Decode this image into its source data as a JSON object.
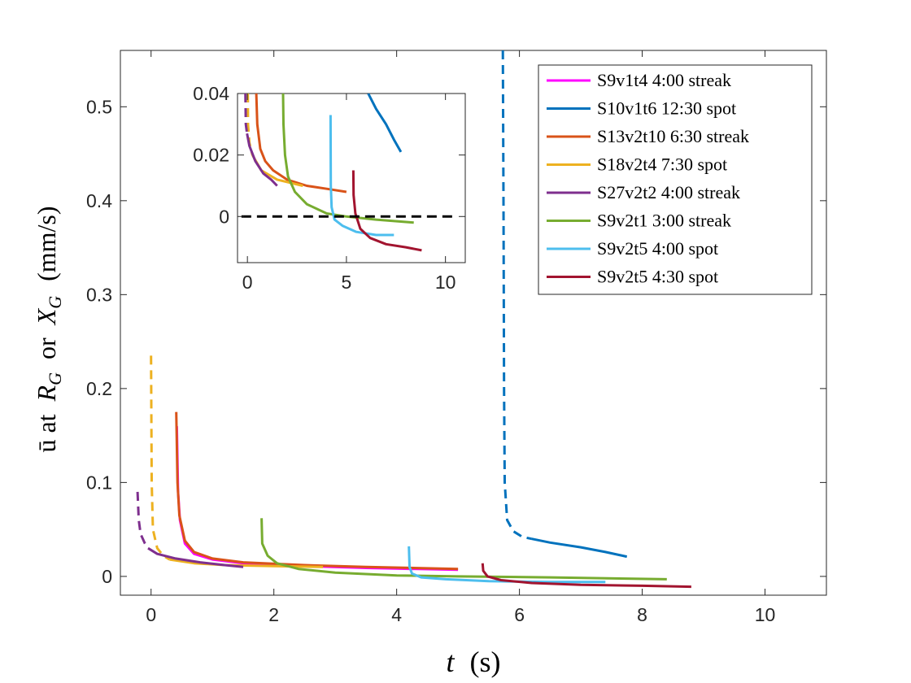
{
  "chart_data": {
    "type": "line",
    "xlabel": {
      "symbol": "t",
      "unit": "(s)"
    },
    "ylabel": {
      "prefix": "ū at",
      "r": "R",
      "r_sub": "G",
      "or": "or",
      "x": "X",
      "x_sub": "G",
      "unit": "(mm/s)"
    },
    "xlim": [
      -0.5,
      11
    ],
    "ylim": [
      -0.02,
      0.56
    ],
    "xticks": [
      "0",
      "2",
      "4",
      "6",
      "8",
      "10"
    ],
    "xtick_values": [
      0,
      2,
      4,
      6,
      8,
      10
    ],
    "yticks": [
      "0",
      "0.1",
      "0.2",
      "0.3",
      "0.4",
      "0.5"
    ],
    "ytick_values": [
      0,
      0.1,
      0.2,
      0.3,
      0.4,
      0.5
    ],
    "legend_position": "top-right",
    "series": [
      {
        "name": "S9v1t4 4:00 streak",
        "color": "#ff00ff",
        "dashed": [],
        "solid": [
          [
            0.42,
            0.16
          ],
          [
            0.44,
            0.09
          ],
          [
            0.47,
            0.06
          ],
          [
            0.55,
            0.035
          ],
          [
            0.7,
            0.024
          ],
          [
            1.0,
            0.018
          ],
          [
            1.5,
            0.014
          ],
          [
            2.5,
            0.011
          ],
          [
            3.5,
            0.009
          ],
          [
            5.0,
            0.007
          ]
        ]
      },
      {
        "name": "S10v1t6 12:30 spot",
        "color": "#0072bd",
        "dashed": [
          [
            5.73,
            0.56
          ],
          [
            5.74,
            0.4
          ],
          [
            5.75,
            0.2
          ],
          [
            5.76,
            0.1
          ],
          [
            5.8,
            0.06
          ],
          [
            5.9,
            0.048
          ],
          [
            6.05,
            0.042
          ],
          [
            6.2,
            0.04
          ]
        ],
        "solid": [
          [
            6.2,
            0.04
          ],
          [
            6.5,
            0.036
          ],
          [
            7.0,
            0.031
          ],
          [
            7.4,
            0.026
          ],
          [
            7.75,
            0.021
          ]
        ]
      },
      {
        "name": "S13v2t10 6:30 streak",
        "color": "#d95319",
        "dashed": [],
        "solid": [
          [
            0.41,
            0.175
          ],
          [
            0.43,
            0.1
          ],
          [
            0.46,
            0.065
          ],
          [
            0.55,
            0.038
          ],
          [
            0.7,
            0.026
          ],
          [
            1.0,
            0.019
          ],
          [
            1.5,
            0.015
          ],
          [
            2.5,
            0.012
          ],
          [
            3.5,
            0.01
          ],
          [
            5.0,
            0.008
          ]
        ]
      },
      {
        "name": "S18v2t4 7:30 spot",
        "color": "#edb120",
        "dashed": [
          [
            0.0,
            0.235
          ],
          [
            0.01,
            0.1
          ],
          [
            0.03,
            0.05
          ],
          [
            0.1,
            0.03
          ],
          [
            0.2,
            0.022
          ],
          [
            0.3,
            0.018
          ]
        ],
        "solid": [
          [
            0.3,
            0.018
          ],
          [
            0.7,
            0.014
          ],
          [
            1.2,
            0.012
          ],
          [
            2.0,
            0.011
          ],
          [
            2.8,
            0.01
          ]
        ]
      },
      {
        "name": "S27v2t2 4:00 streak",
        "color": "#7e2f8e",
        "dashed": [
          [
            -0.22,
            0.09
          ],
          [
            -0.2,
            0.06
          ],
          [
            -0.17,
            0.045
          ],
          [
            -0.1,
            0.035
          ],
          [
            -0.05,
            0.03
          ]
        ],
        "solid": [
          [
            -0.05,
            0.03
          ],
          [
            0.1,
            0.024
          ],
          [
            0.4,
            0.019
          ],
          [
            0.8,
            0.015
          ],
          [
            1.2,
            0.012
          ],
          [
            1.5,
            0.01
          ]
        ]
      },
      {
        "name": "S9v2t1 3:00 streak",
        "color": "#77ac30",
        "dashed": [],
        "solid": [
          [
            1.8,
            0.062
          ],
          [
            1.81,
            0.035
          ],
          [
            1.9,
            0.022
          ],
          [
            2.05,
            0.014
          ],
          [
            2.4,
            0.008
          ],
          [
            3.0,
            0.004
          ],
          [
            4.0,
            0.001
          ],
          [
            5.0,
            0.0
          ],
          [
            6.5,
            -0.001
          ],
          [
            8.4,
            -0.003
          ]
        ]
      },
      {
        "name": "S9v2t5 4:00 spot",
        "color": "#4dbeee",
        "dashed": [],
        "solid": [
          [
            4.2,
            0.032
          ],
          [
            4.21,
            0.01
          ],
          [
            4.25,
            0.003
          ],
          [
            4.4,
            -0.001
          ],
          [
            4.8,
            -0.003
          ],
          [
            5.5,
            -0.005
          ],
          [
            6.5,
            -0.006
          ],
          [
            7.4,
            -0.006
          ]
        ]
      },
      {
        "name": "S9v2t5 4:30 spot",
        "color": "#a2142f",
        "dashed": [],
        "solid": [
          [
            5.4,
            0.014
          ],
          [
            5.41,
            0.006
          ],
          [
            5.48,
            0.0
          ],
          [
            5.7,
            -0.004
          ],
          [
            6.2,
            -0.007
          ],
          [
            7.0,
            -0.009
          ],
          [
            8.0,
            -0.01
          ],
          [
            8.8,
            -0.011
          ]
        ]
      }
    ],
    "inset": {
      "xlim": [
        -0.5,
        11
      ],
      "ylim": [
        -0.015,
        0.04
      ],
      "xticks": [
        "0",
        "5",
        "10"
      ],
      "xtick_values": [
        0,
        5,
        10
      ],
      "yticks": [
        "0",
        "0.02",
        "0.04"
      ],
      "ytick_values": [
        0,
        0.02,
        0.04
      ],
      "zero_line": {
        "y": 0,
        "color": "#000000",
        "style": "dashed"
      },
      "series": [
        {
          "color": "#d95319",
          "dashed": [],
          "solid": [
            [
              0.45,
              0.04
            ],
            [
              0.5,
              0.03
            ],
            [
              0.65,
              0.022
            ],
            [
              0.9,
              0.018
            ],
            [
              1.3,
              0.015
            ],
            [
              2.0,
              0.012
            ],
            [
              3.0,
              0.01
            ],
            [
              4.0,
              0.009
            ],
            [
              5.0,
              0.008
            ]
          ]
        },
        {
          "color": "#edb120",
          "dashed": [
            [
              0.02,
              0.04
            ],
            [
              0.03,
              0.03
            ],
            [
              0.1,
              0.024
            ],
            [
              0.25,
              0.02
            ]
          ],
          "solid": [
            [
              0.25,
              0.02
            ],
            [
              0.7,
              0.015
            ],
            [
              1.5,
              0.012
            ],
            [
              2.8,
              0.01
            ]
          ]
        },
        {
          "color": "#7e2f8e",
          "dashed": [
            [
              -0.1,
              0.04
            ],
            [
              -0.08,
              0.03
            ],
            [
              -0.02,
              0.027
            ]
          ],
          "solid": [
            [
              -0.02,
              0.027
            ],
            [
              0.1,
              0.023
            ],
            [
              0.4,
              0.018
            ],
            [
              0.8,
              0.014
            ],
            [
              1.2,
              0.012
            ],
            [
              1.5,
              0.01
            ]
          ]
        },
        {
          "color": "#77ac30",
          "dashed": [],
          "solid": [
            [
              1.8,
              0.04
            ],
            [
              1.82,
              0.03
            ],
            [
              1.9,
              0.02
            ],
            [
              2.05,
              0.013
            ],
            [
              2.4,
              0.008
            ],
            [
              3.0,
              0.004
            ],
            [
              4.0,
              0.001
            ],
            [
              5.0,
              0.0
            ],
            [
              6.5,
              -0.001
            ],
            [
              8.4,
              -0.002
            ]
          ]
        },
        {
          "color": "#4dbeee",
          "dashed": [],
          "solid": [
            [
              4.2,
              0.033
            ],
            [
              4.21,
              0.01
            ],
            [
              4.25,
              0.003
            ],
            [
              4.4,
              -0.001
            ],
            [
              4.8,
              -0.003
            ],
            [
              5.5,
              -0.005
            ],
            [
              6.5,
              -0.006
            ],
            [
              7.4,
              -0.006
            ]
          ]
        },
        {
          "color": "#a2142f",
          "dashed": [],
          "solid": [
            [
              5.35,
              0.015
            ],
            [
              5.36,
              0.007
            ],
            [
              5.45,
              0.001
            ],
            [
              5.7,
              -0.004
            ],
            [
              6.2,
              -0.007
            ],
            [
              7.0,
              -0.009
            ],
            [
              8.0,
              -0.01
            ],
            [
              8.8,
              -0.011
            ]
          ]
        },
        {
          "color": "#0072bd",
          "dashed": [],
          "solid": [
            [
              6.1,
              0.04
            ],
            [
              6.5,
              0.035
            ],
            [
              7.0,
              0.03
            ],
            [
              7.4,
              0.025
            ],
            [
              7.75,
              0.021
            ]
          ]
        }
      ]
    }
  }
}
